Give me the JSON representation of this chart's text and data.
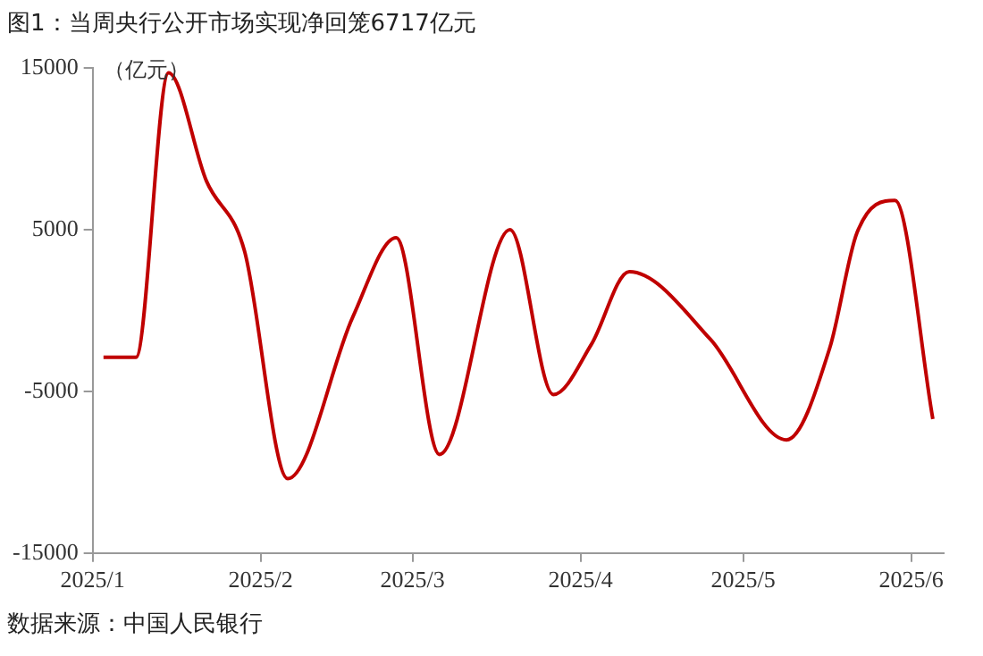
{
  "chart_data": {
    "type": "line",
    "title": "图1：当周央行公开市场实现净回笼6717亿元",
    "ylabel": "（亿元）",
    "annotations": [
      "数据来源：中国人民银行"
    ],
    "x": [
      "2025-01-03",
      "2025-01-09",
      "2025-01-15",
      "2025-01-22",
      "2025-01-29",
      "2025-02-06",
      "2025-02-18",
      "2025-02-26",
      "2025-03-06",
      "2025-03-19",
      "2025-03-27",
      "2025-04-03",
      "2025-04-10",
      "2025-04-25",
      "2025-05-09",
      "2025-05-17",
      "2025-05-22",
      "2025-05-29",
      "2025-06-05"
    ],
    "series": [
      {
        "color": "#c00000",
        "values": [
          -2900,
          -2900,
          14700,
          8000,
          3700,
          -10400,
          -400,
          4500,
          -8900,
          5000,
          -5200,
          -2100,
          2400,
          -1800,
          -8000,
          -2300,
          4800,
          6800,
          -6717
        ]
      }
    ],
    "xlim": [
      "2025-01-01",
      "2025-06-07"
    ],
    "xticks": [
      {
        "value": "2025-01-01",
        "label": "2025/1"
      },
      {
        "value": "2025-02-01",
        "label": "2025/2"
      },
      {
        "value": "2025-03-01",
        "label": "2025/3"
      },
      {
        "value": "2025-04-01",
        "label": "2025/4"
      },
      {
        "value": "2025-05-01",
        "label": "2025/5"
      },
      {
        "value": "2025-06-01",
        "label": "2025/6"
      }
    ],
    "ylim": [
      -15000,
      15000
    ],
    "yticks": [
      -15000,
      -5000,
      5000,
      15000
    ],
    "grid": false,
    "legend": false,
    "marker": "none",
    "line_style": "solid"
  }
}
